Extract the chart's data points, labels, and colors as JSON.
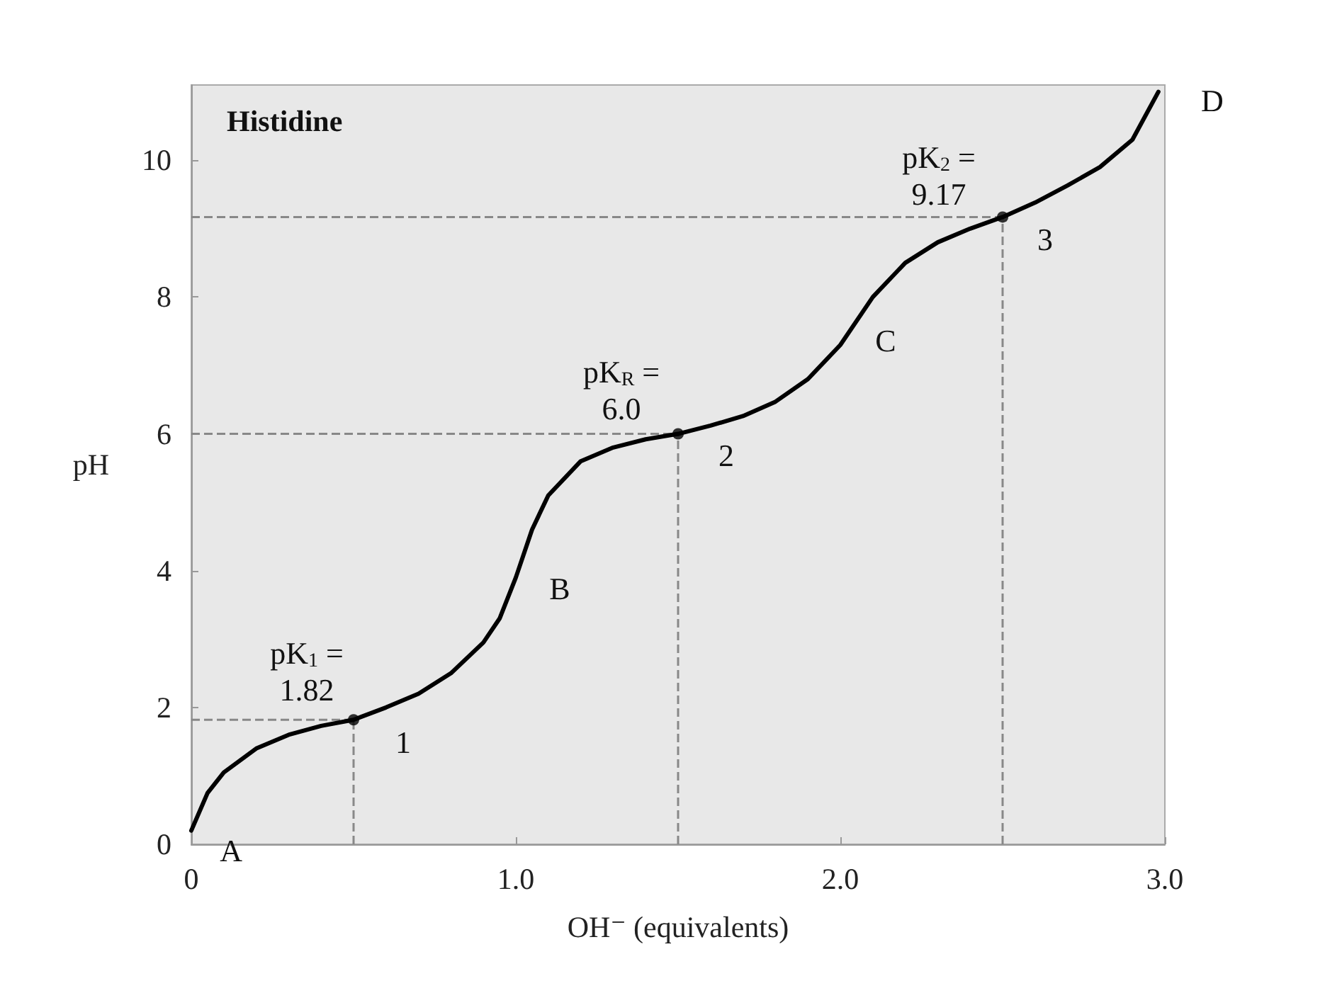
{
  "chart_data": {
    "type": "line",
    "title": "Histidine",
    "xlabel": "OH⁻ (equivalents)",
    "ylabel": "pH",
    "xlim": [
      0,
      3.0
    ],
    "xticks": [
      0,
      {
        "value": 1,
        "label": "1.0"
      },
      {
        "value": 2,
        "label": "2.0"
      },
      {
        "value": 3,
        "label": "3.0"
      }
    ],
    "ylim": [
      0,
      11.1
    ],
    "yticks": [
      0,
      2,
      4,
      6,
      8,
      10
    ],
    "grid": false,
    "series": [
      {
        "color": "#000000",
        "marker": "none",
        "x": [
          0,
          0.05,
          0.1,
          0.2,
          0.3,
          0.4,
          0.5,
          0.6,
          0.7,
          0.8,
          0.9,
          0.95,
          1.0,
          1.05,
          1.1,
          1.2,
          1.3,
          1.4,
          1.5,
          1.6,
          1.7,
          1.8,
          1.9,
          2.0,
          2.1,
          2.2,
          2.3,
          2.4,
          2.5,
          2.6,
          2.7,
          2.8,
          2.9,
          2.98
        ],
        "values": [
          0.2,
          0.75,
          1.05,
          1.4,
          1.6,
          1.73,
          1.82,
          2.0,
          2.2,
          2.5,
          2.95,
          3.3,
          3.9,
          4.6,
          5.1,
          5.6,
          5.8,
          5.92,
          6.0,
          6.12,
          6.26,
          6.47,
          6.8,
          7.3,
          8.0,
          8.5,
          8.8,
          9.0,
          9.17,
          9.38,
          9.63,
          9.9,
          10.3,
          11.0
        ]
      },
      {
        "type": "scatter",
        "color": "#000000",
        "marker": "circle",
        "x": [
          0.5,
          1.5,
          2.5
        ],
        "values": [
          1.82,
          6.0,
          9.17
        ]
      }
    ],
    "ref_lines": [
      {
        "axis": "y",
        "value": 1.82,
        "color": "#888888",
        "line_style": "dashed"
      },
      {
        "axis": "y",
        "value": 6.0,
        "color": "#888888",
        "line_style": "dashed"
      },
      {
        "axis": "y",
        "value": 9.17,
        "color": "#888888",
        "line_style": "dashed"
      },
      {
        "axis": "x",
        "value": 0.5,
        "color": "#888888",
        "line_style": "dashed"
      },
      {
        "axis": "x",
        "value": 1.5,
        "color": "#888888",
        "line_style": "dashed"
      },
      {
        "axis": "x",
        "value": 2.5,
        "color": "#888888",
        "line_style": "dashed"
      }
    ],
    "annotations": [
      {
        "text": "pK$_{1}$ =\n1.82",
        "x": 0.5,
        "y": 1.82
      },
      {
        "text": "pK$_{R}$ =\n6.0",
        "x": 1.5,
        "y": 6.0
      },
      {
        "text": "pK$_{2}$ =\n9.17",
        "x": 2.5,
        "y": 9.17
      },
      {
        "text": "1",
        "x": 0.5,
        "y": 1.82
      },
      {
        "text": "2",
        "x": 1.5,
        "y": 6.0
      },
      {
        "text": "3",
        "x": 2.5,
        "y": 9.17
      },
      {
        "text": "A",
        "x": 0,
        "y": 0.2
      },
      {
        "text": "B",
        "x": 1.0,
        "y": 3.9
      },
      {
        "text": "C",
        "x": 2.0,
        "y": 7.3
      },
      {
        "text": "D",
        "x": 2.98,
        "y": 11.0
      }
    ]
  }
}
